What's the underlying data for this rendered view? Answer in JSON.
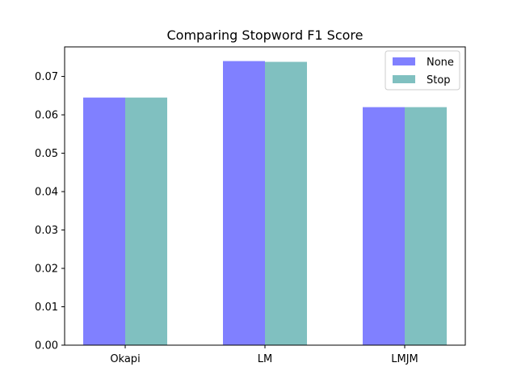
{
  "chart_data": {
    "type": "bar",
    "title": "Comparing Stopword F1 Score",
    "xlabel": "",
    "ylabel": "",
    "categories": [
      "Okapi",
      "LM",
      "LMJM"
    ],
    "series": [
      {
        "name": "None",
        "values": [
          0.0645,
          0.074,
          0.062
        ],
        "color": "#8080ff"
      },
      {
        "name": "Stop",
        "values": [
          0.0645,
          0.0738,
          0.062
        ],
        "color": "#80c0c0"
      }
    ],
    "ylim": [
      0,
      0.0777
    ],
    "yticks": [
      "0.00",
      "0.01",
      "0.02",
      "0.03",
      "0.04",
      "0.05",
      "0.06",
      "0.07"
    ],
    "yticks_values": [
      0,
      0.01,
      0.02,
      0.03,
      0.04,
      0.05,
      0.06,
      0.07
    ],
    "grid": false,
    "legend_position": "top-right"
  }
}
